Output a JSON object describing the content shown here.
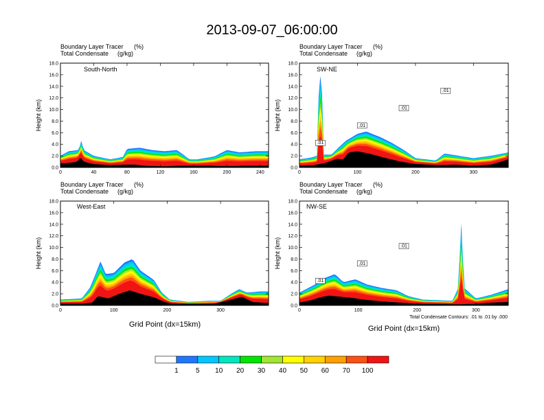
{
  "chart_data": {
    "type": "heatmap",
    "title": "2013-09-07_06:00:00",
    "field_label": "Boundary Layer Tracer",
    "field_units": "(%)",
    "contour_label": "Total Condensate",
    "contour_units": "(g/kg)",
    "ylabel": "Height (km)",
    "xlabel": "Grid Point (dx=15km)",
    "footnote": "Total Condensate Contours: .01 to .01 by .000",
    "colorbar": {
      "colors": [
        "#ffffff",
        "#1e78ff",
        "#00c8ff",
        "#00e6be",
        "#00e600",
        "#a0e632",
        "#ffff00",
        "#ffd200",
        "#ffa000",
        "#ff5014",
        "#f01414"
      ],
      "ticks": [
        "1",
        "5",
        "10",
        "20",
        "30",
        "40",
        "50",
        "60",
        "70",
        "100"
      ]
    },
    "panels": [
      {
        "id": "south-north",
        "name": "South-North",
        "xmax": 250,
        "xticks": [
          0,
          40,
          80,
          120,
          160,
          200,
          240
        ],
        "yticks": [
          "0.0",
          "2.0",
          "4.0",
          "6.0",
          "8.0",
          "10.0",
          "12.0",
          "14.0",
          "16.0",
          "18.0"
        ],
        "contour_labels": [],
        "terrain": [
          [
            0,
            0.7
          ],
          [
            10,
            0.8
          ],
          [
            20,
            1.0
          ],
          [
            24,
            1.8
          ],
          [
            28,
            1.0
          ],
          [
            40,
            0.6
          ],
          [
            60,
            0.4
          ],
          [
            80,
            0.5
          ],
          [
            90,
            0.5
          ],
          [
            100,
            0.3
          ],
          [
            125,
            0.2
          ],
          [
            140,
            0.3
          ],
          [
            160,
            0.3
          ],
          [
            180,
            0.3
          ],
          [
            200,
            0.25
          ],
          [
            220,
            0.3
          ],
          [
            250,
            0.3
          ]
        ],
        "tracer_top": [
          [
            0,
            2.0
          ],
          [
            10,
            2.8
          ],
          [
            22,
            3.0
          ],
          [
            25,
            4.6
          ],
          [
            28,
            3.0
          ],
          [
            40,
            2.0
          ],
          [
            60,
            1.4
          ],
          [
            75,
            1.8
          ],
          [
            80,
            3.2
          ],
          [
            95,
            3.4
          ],
          [
            110,
            3.0
          ],
          [
            125,
            2.8
          ],
          [
            140,
            3.0
          ],
          [
            155,
            1.4
          ],
          [
            165,
            1.4
          ],
          [
            185,
            1.9
          ],
          [
            200,
            3.0
          ],
          [
            215,
            2.6
          ],
          [
            235,
            2.8
          ],
          [
            250,
            2.8
          ]
        ]
      },
      {
        "id": "sw-ne",
        "name": "SW-NE",
        "xmax": 360,
        "xticks": [
          0,
          100,
          200,
          300
        ],
        "yticks": [
          "0.0",
          "2.0",
          "4.0",
          "6.0",
          "8.0",
          "10.0",
          "12.0",
          "14.0",
          "16.0",
          "18.0"
        ],
        "contour_labels": [
          ".01",
          ".01",
          ".01",
          ".01"
        ],
        "terrain": [
          [
            0,
            0.3
          ],
          [
            25,
            0.4
          ],
          [
            45,
            0.8
          ],
          [
            65,
            1.5
          ],
          [
            75,
            1.4
          ],
          [
            85,
            2.6
          ],
          [
            100,
            2.8
          ],
          [
            120,
            2.4
          ],
          [
            150,
            1.6
          ],
          [
            175,
            1.0
          ],
          [
            200,
            0.6
          ],
          [
            240,
            0.4
          ],
          [
            270,
            0.5
          ],
          [
            300,
            0.3
          ],
          [
            330,
            0.5
          ],
          [
            360,
            1.4
          ]
        ],
        "tracer_top": [
          [
            0,
            1.4
          ],
          [
            20,
            1.7
          ],
          [
            30,
            2.0
          ],
          [
            34,
            15.6
          ],
          [
            38,
            16.0
          ],
          [
            42,
            2.2
          ],
          [
            55,
            2.2
          ],
          [
            65,
            3.2
          ],
          [
            80,
            4.6
          ],
          [
            100,
            5.8
          ],
          [
            115,
            6.2
          ],
          [
            140,
            5.2
          ],
          [
            160,
            4.2
          ],
          [
            180,
            3.0
          ],
          [
            200,
            1.6
          ],
          [
            235,
            1.2
          ],
          [
            250,
            2.4
          ],
          [
            275,
            2.0
          ],
          [
            300,
            1.6
          ],
          [
            330,
            2.0
          ],
          [
            360,
            2.6
          ]
        ]
      },
      {
        "id": "west-east",
        "name": "West-East",
        "xmax": 390,
        "xticks": [
          0,
          100,
          200,
          300
        ],
        "yticks": [
          "0.0",
          "2.0",
          "4.0",
          "6.0",
          "8.0",
          "10.0",
          "12.0",
          "14.0",
          "16.0",
          "18.0"
        ],
        "contour_labels": [],
        "terrain": [
          [
            0,
            0.3
          ],
          [
            40,
            0.3
          ],
          [
            60,
            0.5
          ],
          [
            70,
            1.6
          ],
          [
            90,
            1.2
          ],
          [
            110,
            2.0
          ],
          [
            130,
            2.6
          ],
          [
            150,
            2.0
          ],
          [
            175,
            1.4
          ],
          [
            195,
            0.6
          ],
          [
            210,
            0.3
          ],
          [
            260,
            0.25
          ],
          [
            290,
            0.3
          ],
          [
            320,
            1.0
          ],
          [
            340,
            1.5
          ],
          [
            360,
            0.6
          ],
          [
            390,
            0.4
          ]
        ],
        "tracer_top": [
          [
            0,
            1.0
          ],
          [
            40,
            1.2
          ],
          [
            55,
            3.0
          ],
          [
            65,
            5.2
          ],
          [
            75,
            7.6
          ],
          [
            85,
            5.4
          ],
          [
            100,
            5.6
          ],
          [
            120,
            7.4
          ],
          [
            135,
            8.0
          ],
          [
            150,
            6.0
          ],
          [
            175,
            4.4
          ],
          [
            190,
            2.2
          ],
          [
            205,
            1.0
          ],
          [
            240,
            0.6
          ],
          [
            280,
            0.8
          ],
          [
            300,
            0.8
          ],
          [
            320,
            2.0
          ],
          [
            335,
            2.8
          ],
          [
            350,
            2.2
          ],
          [
            375,
            2.4
          ],
          [
            390,
            2.4
          ]
        ]
      },
      {
        "id": "nw-se",
        "name": "NW-SE",
        "xmax": 355,
        "xticks": [
          0,
          100,
          200,
          300
        ],
        "yticks": [
          "0.0",
          "2.0",
          "4.0",
          "6.0",
          "8.0",
          "10.0",
          "12.0",
          "14.0",
          "16.0",
          "18.0"
        ],
        "contour_labels": [
          ".01",
          ".01",
          ".01"
        ],
        "terrain": [
          [
            0,
            0.5
          ],
          [
            20,
            0.9
          ],
          [
            35,
            1.4
          ],
          [
            50,
            1.7
          ],
          [
            70,
            1.5
          ],
          [
            90,
            1.3
          ],
          [
            110,
            1.0
          ],
          [
            140,
            0.7
          ],
          [
            170,
            0.5
          ],
          [
            200,
            0.3
          ],
          [
            240,
            0.25
          ],
          [
            270,
            0.2
          ],
          [
            300,
            0.3
          ],
          [
            330,
            0.5
          ],
          [
            355,
            0.6
          ]
        ],
        "tracer_top": [
          [
            0,
            2.2
          ],
          [
            15,
            3.0
          ],
          [
            30,
            3.8
          ],
          [
            45,
            4.8
          ],
          [
            60,
            5.4
          ],
          [
            75,
            4.0
          ],
          [
            95,
            4.5
          ],
          [
            115,
            3.6
          ],
          [
            140,
            3.0
          ],
          [
            165,
            2.6
          ],
          [
            185,
            1.6
          ],
          [
            210,
            1.0
          ],
          [
            260,
            0.8
          ],
          [
            270,
            3.0
          ],
          [
            275,
            14.4
          ],
          [
            280,
            3.0
          ],
          [
            300,
            1.2
          ],
          [
            325,
            1.8
          ],
          [
            355,
            2.8
          ]
        ]
      }
    ]
  }
}
